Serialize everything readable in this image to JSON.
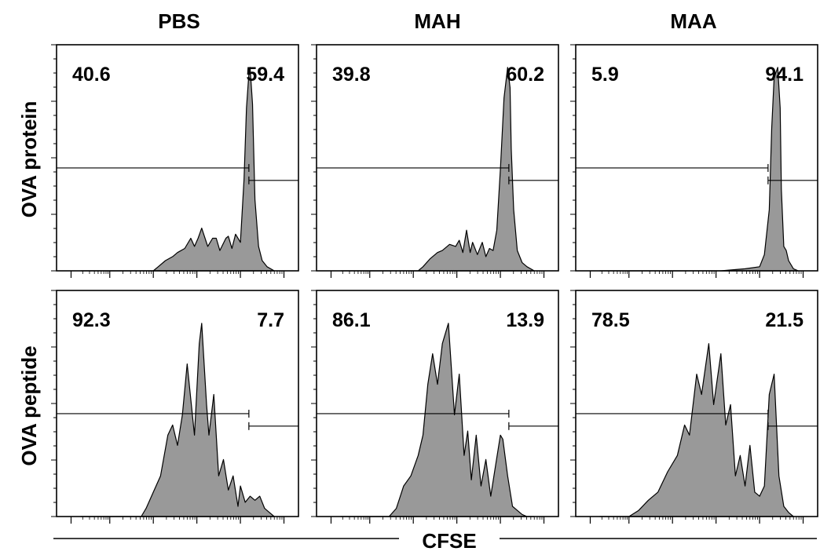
{
  "chart_data": {
    "type": "histogram-grid",
    "xlabel": "CFSE",
    "columns": [
      "PBS",
      "MAH",
      "MAA"
    ],
    "rows": [
      "OVA protein",
      "OVA peptide"
    ],
    "fill_color": "#999999",
    "panels": [
      {
        "row": "OVA protein",
        "column": "PBS",
        "percent_left": "40.6",
        "percent_right": "59.4",
        "x": [
          0.1,
          0.4,
          0.42,
          0.45,
          0.48,
          0.5,
          0.53,
          0.555,
          0.57,
          0.585,
          0.6,
          0.625,
          0.645,
          0.66,
          0.675,
          0.7,
          0.71,
          0.725,
          0.74,
          0.76,
          0.775,
          0.785,
          0.795,
          0.8,
          0.81,
          0.82,
          0.835,
          0.85,
          0.87,
          0.9
        ],
        "y": [
          0.0,
          0.0,
          0.02,
          0.05,
          0.07,
          0.09,
          0.11,
          0.16,
          0.12,
          0.16,
          0.21,
          0.12,
          0.16,
          0.16,
          0.1,
          0.16,
          0.17,
          0.11,
          0.18,
          0.14,
          0.45,
          0.8,
          0.97,
          1.0,
          0.82,
          0.35,
          0.12,
          0.05,
          0.02,
          0.0
        ]
      },
      {
        "row": "OVA protein",
        "column": "MAH",
        "percent_left": "39.8",
        "percent_right": "60.2",
        "x": [
          0.1,
          0.42,
          0.44,
          0.47,
          0.5,
          0.52,
          0.55,
          0.575,
          0.59,
          0.605,
          0.62,
          0.635,
          0.645,
          0.665,
          0.685,
          0.7,
          0.715,
          0.73,
          0.745,
          0.76,
          0.775,
          0.79,
          0.8,
          0.805,
          0.815,
          0.83,
          0.85,
          0.87,
          0.9
        ],
        "y": [
          0.0,
          0.0,
          0.02,
          0.06,
          0.09,
          0.1,
          0.13,
          0.12,
          0.15,
          0.09,
          0.2,
          0.09,
          0.14,
          0.08,
          0.14,
          0.07,
          0.11,
          0.1,
          0.2,
          0.5,
          0.85,
          1.0,
          0.9,
          0.6,
          0.3,
          0.1,
          0.04,
          0.02,
          0.0
        ]
      },
      {
        "row": "OVA protein",
        "column": "MAA",
        "percent_left": "5.9",
        "percent_right": "94.1",
        "x": [
          0.1,
          0.6,
          0.7,
          0.76,
          0.78,
          0.8,
          0.81,
          0.82,
          0.835,
          0.845,
          0.85,
          0.86,
          0.87,
          0.88,
          0.9,
          0.92
        ],
        "y": [
          0.0,
          0.0,
          0.01,
          0.02,
          0.08,
          0.3,
          0.7,
          0.95,
          1.0,
          0.8,
          0.4,
          0.12,
          0.1,
          0.05,
          0.01,
          0.0
        ]
      },
      {
        "row": "OVA peptide",
        "column": "PBS",
        "percent_left": "92.3",
        "percent_right": "7.7",
        "x": [
          0.1,
          0.35,
          0.37,
          0.4,
          0.43,
          0.46,
          0.48,
          0.5,
          0.52,
          0.54,
          0.57,
          0.59,
          0.6,
          0.62,
          0.63,
          0.65,
          0.67,
          0.69,
          0.71,
          0.73,
          0.75,
          0.76,
          0.78,
          0.8,
          0.82,
          0.84,
          0.86,
          0.88,
          0.9
        ],
        "y": [
          0.0,
          0.0,
          0.04,
          0.12,
          0.2,
          0.4,
          0.45,
          0.35,
          0.5,
          0.75,
          0.4,
          0.85,
          0.95,
          0.55,
          0.4,
          0.6,
          0.2,
          0.28,
          0.13,
          0.2,
          0.05,
          0.15,
          0.07,
          0.1,
          0.08,
          0.1,
          0.04,
          0.02,
          0.0
        ]
      },
      {
        "row": "OVA peptide",
        "column": "MAH",
        "percent_left": "86.1",
        "percent_right": "13.9",
        "x": [
          0.1,
          0.3,
          0.33,
          0.36,
          0.39,
          0.42,
          0.44,
          0.46,
          0.48,
          0.5,
          0.52,
          0.545,
          0.57,
          0.59,
          0.61,
          0.625,
          0.64,
          0.66,
          0.68,
          0.7,
          0.72,
          0.74,
          0.76,
          0.77,
          0.79,
          0.81,
          0.83,
          0.85,
          0.87,
          0.9
        ],
        "y": [
          0.0,
          0.0,
          0.04,
          0.15,
          0.2,
          0.3,
          0.4,
          0.65,
          0.8,
          0.65,
          0.85,
          0.95,
          0.5,
          0.7,
          0.3,
          0.42,
          0.18,
          0.4,
          0.15,
          0.28,
          0.1,
          0.25,
          0.4,
          0.38,
          0.2,
          0.05,
          0.03,
          0.01,
          0.0,
          0.0
        ]
      },
      {
        "row": "OVA peptide",
        "column": "MAA",
        "percent_left": "78.5",
        "percent_right": "21.5",
        "x": [
          0.1,
          0.22,
          0.26,
          0.3,
          0.34,
          0.38,
          0.42,
          0.45,
          0.47,
          0.5,
          0.52,
          0.55,
          0.57,
          0.6,
          0.62,
          0.64,
          0.66,
          0.68,
          0.7,
          0.72,
          0.74,
          0.76,
          0.78,
          0.8,
          0.82,
          0.84,
          0.86,
          0.88,
          0.9
        ],
        "y": [
          0.0,
          0.0,
          0.03,
          0.08,
          0.12,
          0.22,
          0.3,
          0.45,
          0.4,
          0.7,
          0.6,
          0.85,
          0.55,
          0.8,
          0.45,
          0.55,
          0.2,
          0.3,
          0.15,
          0.35,
          0.12,
          0.1,
          0.15,
          0.6,
          0.7,
          0.2,
          0.05,
          0.02,
          0.0
        ]
      }
    ]
  }
}
